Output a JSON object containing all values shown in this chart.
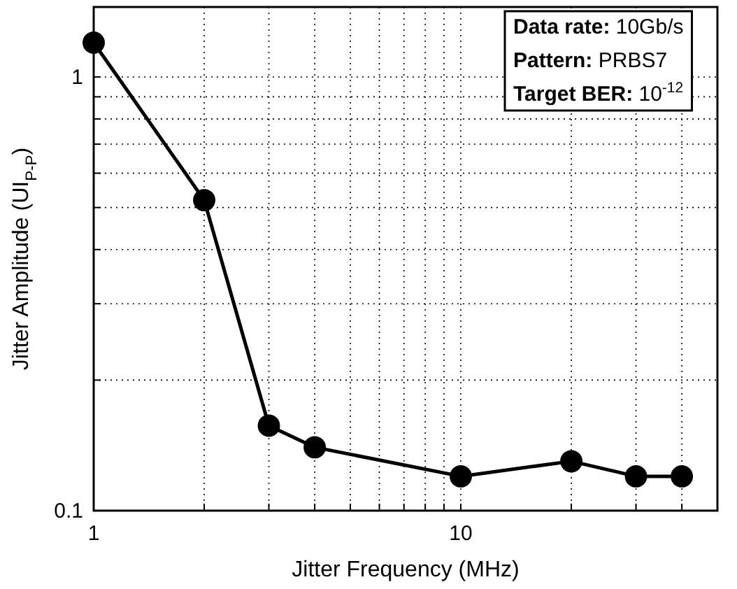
{
  "chart_data": {
    "type": "line",
    "xlabel": "Jitter Frequency (MHz)",
    "ylabel": "Jitter Amplitude (UI$_{P-P}$)",
    "x": [
      1,
      2,
      3,
      4,
      10,
      20,
      30,
      40
    ],
    "series": [
      {
        "color": "#000000",
        "values": [
          1.2,
          0.52,
          0.157,
          0.14,
          0.12,
          0.13,
          0.12,
          0.12
        ]
      }
    ],
    "log": "xy",
    "xlim": [
      1,
      50
    ],
    "ylim": [
      0.1,
      1.45
    ],
    "xticks": [
      1,
      {
        "value": 2,
        "label": null
      },
      {
        "value": 3,
        "label": null
      },
      {
        "value": 4,
        "label": null
      },
      {
        "value": 5,
        "label": null
      },
      {
        "value": 6,
        "label": null
      },
      {
        "value": 7,
        "label": null
      },
      {
        "value": 8,
        "label": null
      },
      {
        "value": 9,
        "label": null
      },
      10,
      {
        "value": 20,
        "label": null
      },
      {
        "value": 30,
        "label": null
      },
      {
        "value": 40,
        "label": null
      }
    ],
    "yticks": [
      0.1,
      {
        "value": 0.2,
        "label": null
      },
      {
        "value": 0.3,
        "label": null
      },
      {
        "value": 0.4,
        "label": null
      },
      {
        "value": 0.5,
        "label": null
      },
      {
        "value": 0.6,
        "label": null
      },
      {
        "value": 0.7,
        "label": null
      },
      {
        "value": 0.8,
        "label": null
      },
      {
        "value": 0.9,
        "label": null
      },
      1
    ],
    "grid": true,
    "marker": "circle",
    "line_style": "solid",
    "annotations": [
      "Data rate: 10Gb/s",
      "Pattern: PRBS7",
      "Target BER: 10$^{-12}$"
    ]
  }
}
